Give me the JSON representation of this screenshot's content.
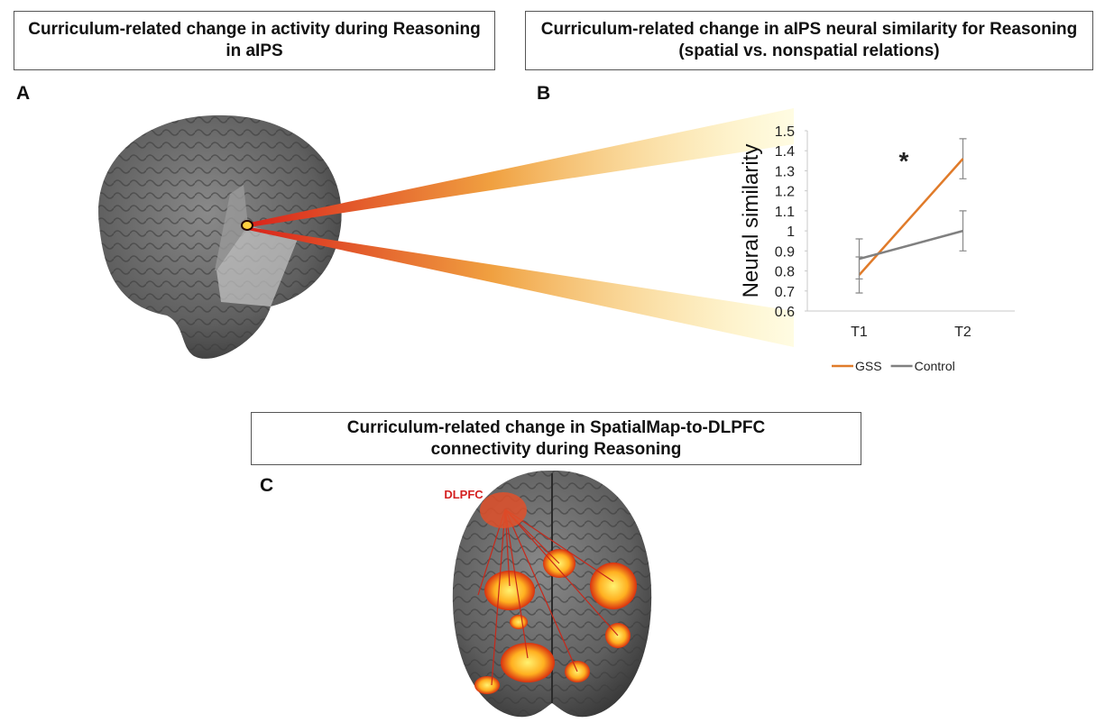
{
  "panels": [
    {
      "letter": "A",
      "title": "Curriculum-related change in activity during Reasoning in aIPS"
    },
    {
      "letter": "B",
      "title": "Curriculum-related change in aIPS neural similarity for Reasoning (spatial vs. nonspatial relations)"
    },
    {
      "letter": "C",
      "title": "Curriculum-related change in SpatialMap-to-DLPFC connectivity during Reasoning",
      "region_label": "DLPFC"
    }
  ],
  "chart_data": {
    "type": "line",
    "y_label": "Neural similarity",
    "annotation": "*",
    "categories": [
      "T1",
      "T2"
    ],
    "series": [
      {
        "name": "GSS",
        "color": "#e07b2a",
        "values": [
          0.78,
          1.36
        ],
        "errors": [
          0.09,
          0.1
        ]
      },
      {
        "name": "Control",
        "color": "#808080",
        "values": [
          0.86,
          1.0
        ],
        "errors": [
          0.1,
          0.1
        ]
      }
    ],
    "ylim": [
      0.6,
      1.5
    ],
    "yticks": [
      0.6,
      0.7,
      0.8,
      0.9,
      1,
      1.1,
      1.2,
      1.3,
      1.4,
      1.5
    ],
    "grid": false,
    "legend": "bottom"
  }
}
